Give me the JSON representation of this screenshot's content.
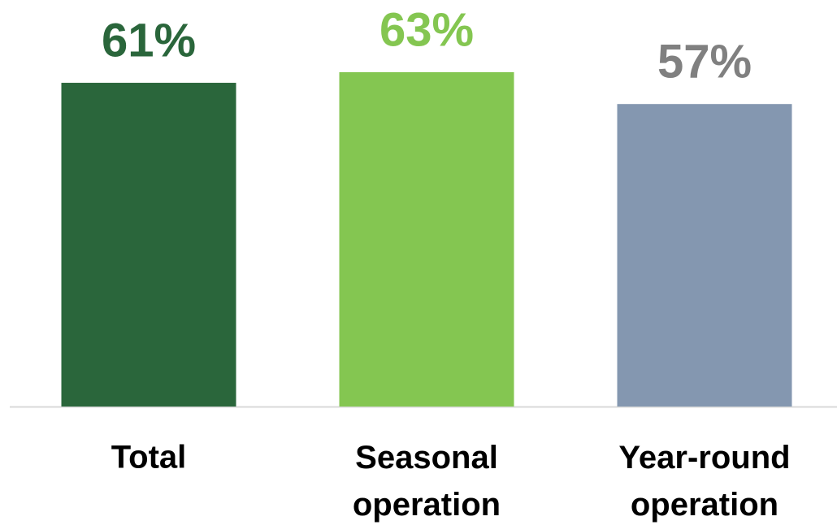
{
  "chart_data": {
    "type": "bar",
    "categories": [
      "Total",
      "Seasonal operation",
      "Year-round operation"
    ],
    "values": [
      61,
      63,
      57
    ],
    "value_labels": [
      "61%",
      "63%",
      "57%"
    ],
    "colors": [
      "#2a663b",
      "#84c651",
      "#8497b0"
    ],
    "label_colors": [
      "#2a663b",
      "#84c651",
      "#808080"
    ],
    "ylim": [
      0,
      76.6
    ]
  }
}
